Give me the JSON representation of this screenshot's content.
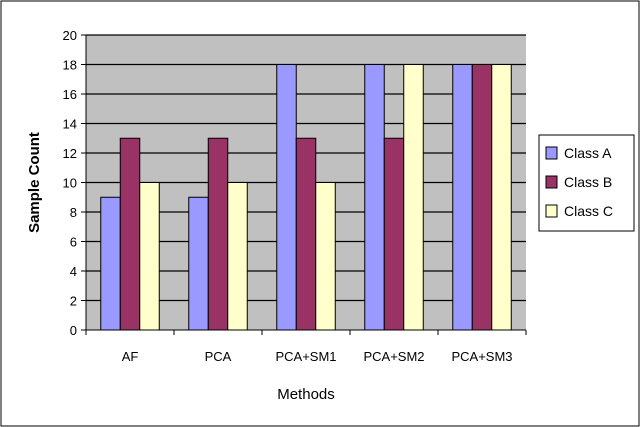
{
  "chart_data": {
    "type": "bar",
    "title": "",
    "xlabel": "Methods",
    "ylabel": "Sample Count",
    "categories": [
      "AF",
      "PCA",
      "PCA+SM1",
      "PCA+SM2",
      "PCA+SM3"
    ],
    "series": [
      {
        "name": "Class A",
        "values": [
          9,
          9,
          18,
          18,
          18
        ],
        "color": "#9999ff"
      },
      {
        "name": "Class B",
        "values": [
          13,
          13,
          13,
          13,
          18
        ],
        "color": "#993366"
      },
      {
        "name": "Class C",
        "values": [
          10,
          10,
          10,
          18,
          18
        ],
        "color": "#ffffcc"
      }
    ],
    "ylim": [
      0,
      20
    ],
    "yticks": [
      "0",
      "2",
      "4",
      "6",
      "8",
      "10",
      "12",
      "14",
      "16",
      "18",
      "20"
    ],
    "grid": true,
    "plot_background": "#c0c0c0",
    "legend_position": "right"
  }
}
